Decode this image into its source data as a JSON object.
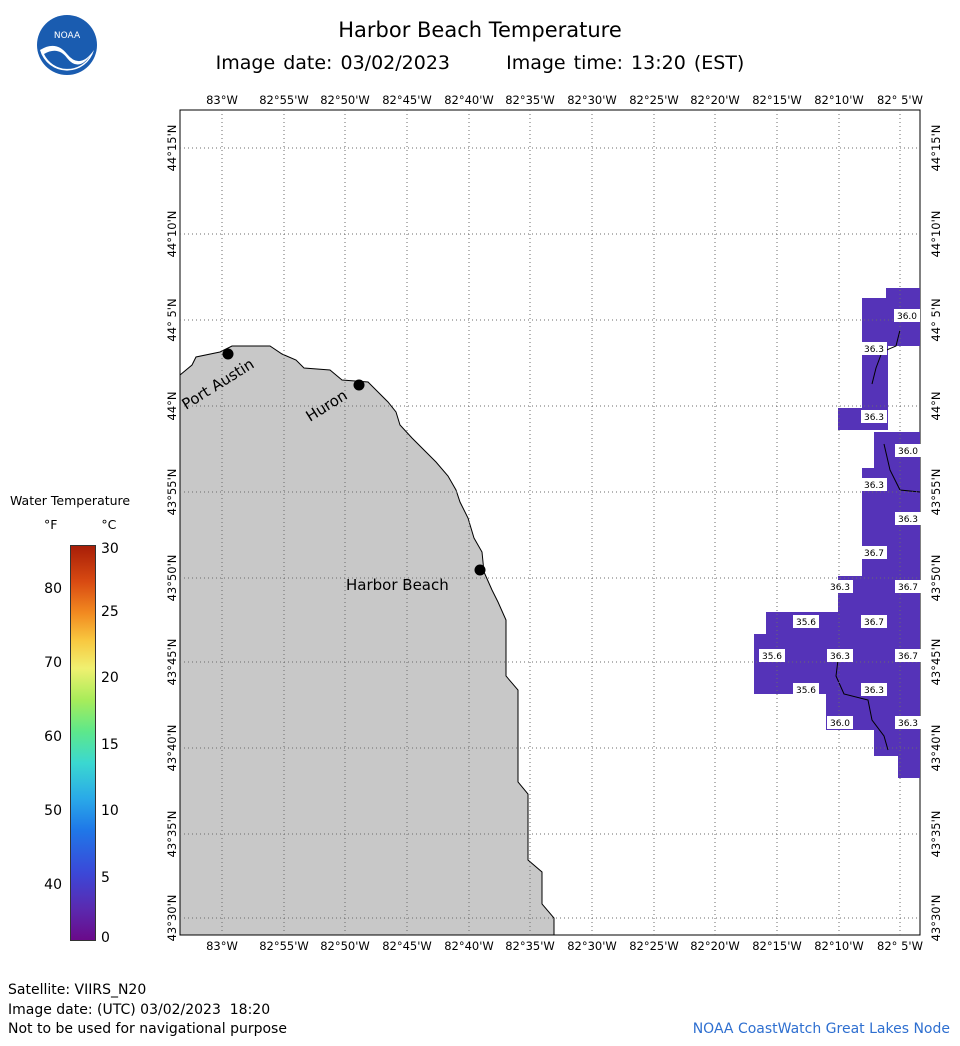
{
  "header": {
    "title": "Harbor Beach Temperature",
    "image_date": "Image date: 03/02/2023",
    "image_time": "Image time: 13:20 (EST)"
  },
  "logo": {
    "text": "NOAA",
    "icon": "noaa-logo-icon"
  },
  "map": {
    "lon_labels": [
      "83°W",
      "82°55'W",
      "82°50'W",
      "82°45'W",
      "82°40'W",
      "82°35'W",
      "82°30'W",
      "82°25'W",
      "82°20'W",
      "82°15'W",
      "82°10'W",
      "82° 5'W"
    ],
    "lat_labels": [
      "44°15'N",
      "44°10'N",
      "44° 5'N",
      "44°N",
      "43°55'N",
      "43°50'N",
      "43°45'N",
      "43°40'N",
      "43°35'N",
      "43°30'N"
    ],
    "cities": [
      "Port Austin",
      "Huron",
      "Harbor Beach"
    ],
    "cell_labels": [
      "36.0",
      "36.3",
      "36.3",
      "36.0",
      "36.3",
      "36.3",
      "36.7",
      "36.3",
      "36.7",
      "35.6",
      "36.7",
      "35.6",
      "36.3",
      "36.7",
      "35.6",
      "36.3",
      "36.0",
      "36.3"
    ],
    "colors": {
      "land": "#c8c8c8",
      "water_temp": "#5533b8",
      "grid": "#6b6b6b"
    }
  },
  "legend": {
    "title": "Water Temperature",
    "unit_f": "°F",
    "unit_c": "°C",
    "f_ticks": [
      "80",
      "70",
      "60",
      "50",
      "40"
    ],
    "c_ticks": [
      "30",
      "25",
      "20",
      "15",
      "10",
      "5",
      "0"
    ]
  },
  "footer": {
    "satellite": "Satellite: VIIRS_N20",
    "utc_date": "Image date: (UTC) 03/02/2023  18:20",
    "disclaimer": "Not to be used for navigational purpose",
    "credit": "NOAA CoastWatch Great Lakes Node"
  }
}
